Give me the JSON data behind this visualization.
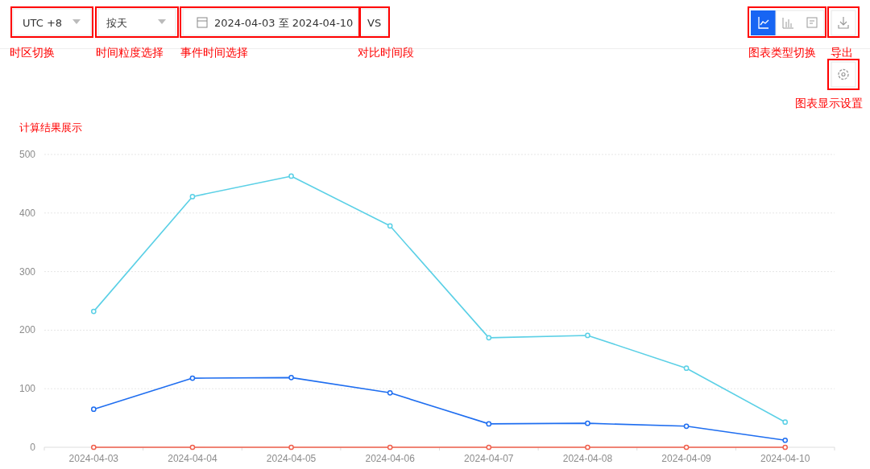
{
  "chart_data": {
    "type": "line",
    "categories": [
      "2024-04-03",
      "2024-04-04",
      "2024-04-05",
      "2024-04-06",
      "2024-04-07",
      "2024-04-08",
      "2024-04-09",
      "2024-04-10"
    ],
    "series": [
      {
        "color": "#5bd0e6",
        "values": [
          232,
          428,
          463,
          378,
          187,
          191,
          135,
          43
        ]
      },
      {
        "color": "#1f6ef0",
        "values": [
          65,
          118,
          119,
          93,
          40,
          41,
          36,
          12
        ]
      },
      {
        "color": "#f0604d",
        "values": [
          0,
          0,
          0,
          0,
          0,
          0,
          0,
          0
        ]
      }
    ],
    "ylim": [
      0,
      500
    ],
    "yticks": [
      0,
      100,
      200,
      300,
      400,
      500
    ],
    "grid": "y",
    "marker": "circle",
    "line_style": "solid",
    "annotations": [
      "UTC +8",
      "按天",
      "2024-04-03 至 2024-04-10",
      "VS",
      "时区切换",
      "时间粒度选择",
      "事件时间选择",
      "对比时间段",
      "图表类型切换",
      "导出",
      "图表显示设置",
      "计算结果展示"
    ]
  }
}
